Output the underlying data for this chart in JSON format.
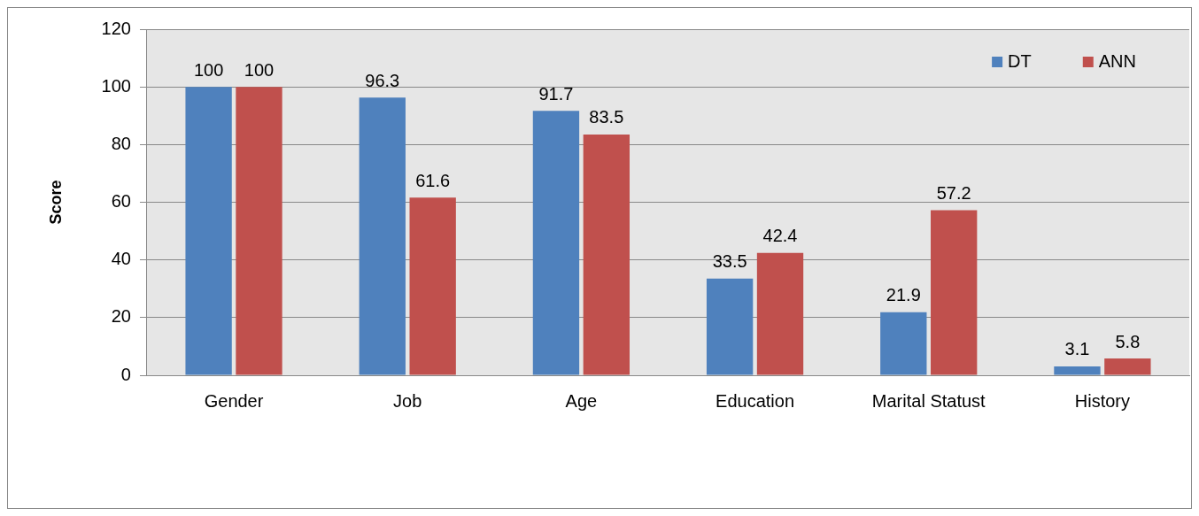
{
  "chart_data": {
    "type": "bar",
    "ylabel": "Score",
    "categories": [
      "Gender",
      "Job",
      "Age",
      "Education",
      "Marital Statust",
      "History"
    ],
    "series": [
      {
        "name": "DT",
        "color": "#4f81bd",
        "values": [
          100,
          96.3,
          91.7,
          33.5,
          21.9,
          3.1
        ]
      },
      {
        "name": "ANN",
        "color": "#c0504d",
        "values": [
          100,
          61.6,
          83.5,
          42.4,
          57.2,
          5.8
        ]
      }
    ],
    "ylim": [
      0,
      120
    ],
    "yticks": [
      0,
      20,
      40,
      60,
      80,
      100,
      120
    ],
    "grid": "y",
    "legend": "top right",
    "data_labels": true
  }
}
